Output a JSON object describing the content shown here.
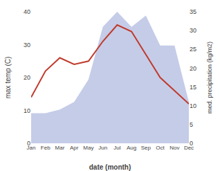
{
  "chart_data": {
    "type": "line",
    "categories": [
      "Jan",
      "Feb",
      "Mar",
      "Apr",
      "May",
      "Jun",
      "Jul",
      "Aug",
      "Sep",
      "Oct",
      "Nov",
      "Dec"
    ],
    "xlabel": "date (month)",
    "ylabel": "max temp (C)",
    "y2label": "med. precipitation (kg/m2)",
    "series": [
      {
        "type": "line",
        "color": "#c0392b",
        "values": [
          14,
          22,
          26,
          24,
          25,
          31,
          36,
          34,
          27,
          20,
          16,
          12
        ]
      },
      {
        "type": "area",
        "color": "#c5cce8",
        "axis": "y2",
        "values": [
          8,
          8,
          9,
          11,
          17,
          31,
          35,
          31,
          34,
          26,
          26,
          11
        ]
      }
    ],
    "ylim": [
      0,
      40
    ],
    "yticks": [
      0,
      10,
      20,
      30,
      40
    ],
    "y2lim": [
      0,
      35
    ],
    "y2ticks": [
      0,
      5,
      10,
      15,
      20,
      25,
      30,
      35
    ],
    "grid": false
  }
}
